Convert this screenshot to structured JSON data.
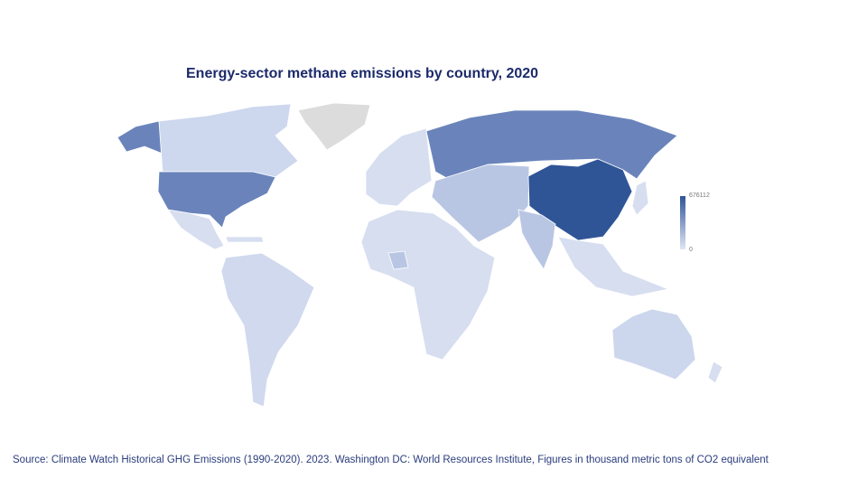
{
  "title": "Energy-sector methane emissions by country, 2020",
  "source": "Source:  Climate Watch Historical GHG Emissions  (1990-2020).  2023. Washington DC: World Resources  Institute, Figures  in thousand  metric tons  of CO2 equivalent",
  "chart_data": {
    "type": "choropleth",
    "title": "Energy-sector methane emissions by country, 2020",
    "color_scale": {
      "min": 0,
      "max": 676112,
      "min_label": "0",
      "max_label": "676112",
      "low_color": "#d6def0",
      "high_color": "#2f5597"
    },
    "no_data_color": "#dcdcdc",
    "highlighted_regions": [
      {
        "name": "China",
        "shade": "#2f5597"
      },
      {
        "name": "Russia",
        "shade": "#6a84bb"
      },
      {
        "name": "United States",
        "shade": "#6a84bb"
      },
      {
        "name": "Iran",
        "shade": "#b5c3e2"
      },
      {
        "name": "India",
        "shade": "#b5c3e2"
      },
      {
        "name": "Greenland",
        "shade": "#dcdcdc"
      }
    ]
  }
}
